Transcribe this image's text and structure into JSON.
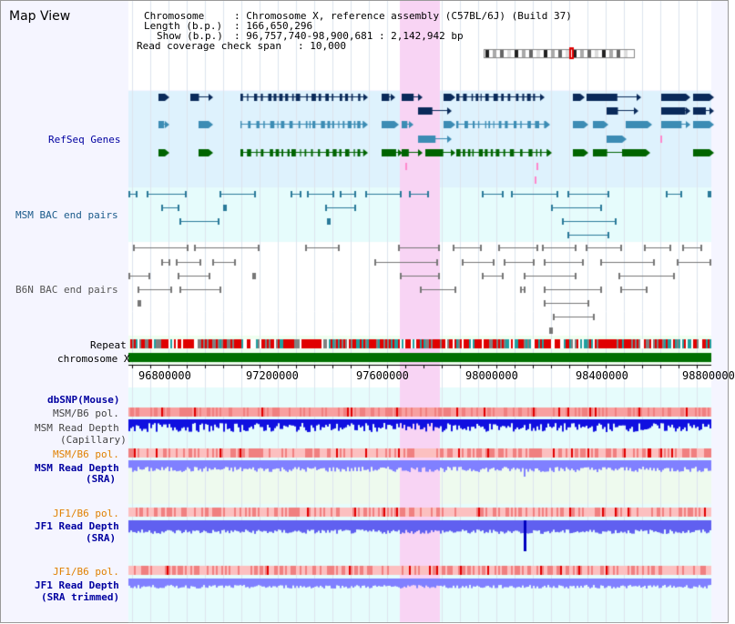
{
  "title": "Map View",
  "info": {
    "chromosome_key": "Chromosome",
    "chromosome_val": ": Chromosome X, reference assembly (C57BL/6J) (Build 37)",
    "length_key": "Length (b.p.)",
    "length_val": ": 166,650,296",
    "show_key": "Show (b.p.)",
    "show_val": ": 96,757,740-98,900,681 : 2,142,942 bp",
    "coverage_key": "Read coverage check span",
    "coverage_val": ": 10,000"
  },
  "tracks": {
    "refseq": "RefSeq Genes",
    "msm_bac": "MSM BAC end pairs",
    "b6n_bac": "B6N BAC end pairs",
    "repeat": "Repeat",
    "chromosome": "chromosome X",
    "dbsnp": "dbSNP(Mouse)",
    "msm_b6_pol_1": "MSM/B6 pol.",
    "msm_read_depth_cap_1": "MSM Read Depth",
    "msm_read_depth_cap_2": "(Capillary)",
    "msm_b6_pol_2": "MSM/B6 pol.",
    "msm_read_depth_sra_1": "MSM Read Depth",
    "msm_read_depth_sra_2": "(SRA)",
    "jf1_b6_pol_1": "JF1/B6 pol.",
    "jf1_read_depth_sra_1": "JF1 Read Depth",
    "jf1_read_depth_sra_2": "(SRA)",
    "jf1_b6_pol_2": "JF1/B6 pol.",
    "jf1_read_depth_trim_1": "JF1 Read Depth",
    "jf1_read_depth_trim_2": "(SRA trimmed)"
  },
  "axis_ticks": [
    "96800000",
    "97200000",
    "97600000",
    "98000000",
    "98400000",
    "98800000"
  ],
  "colors": {
    "navy_label": "#0000a0",
    "orange_label": "#e08000",
    "refseq_bg": "#def2fd",
    "bac_bg": "#e6fcfc",
    "highlight": "#f8d4f4",
    "gene_dark": "#0a2a5a",
    "gene_mid": "#3c8cb4",
    "gene_green": "#006400",
    "depth_blue": "#0000ff",
    "depth_lavender": "#8080ff"
  }
}
